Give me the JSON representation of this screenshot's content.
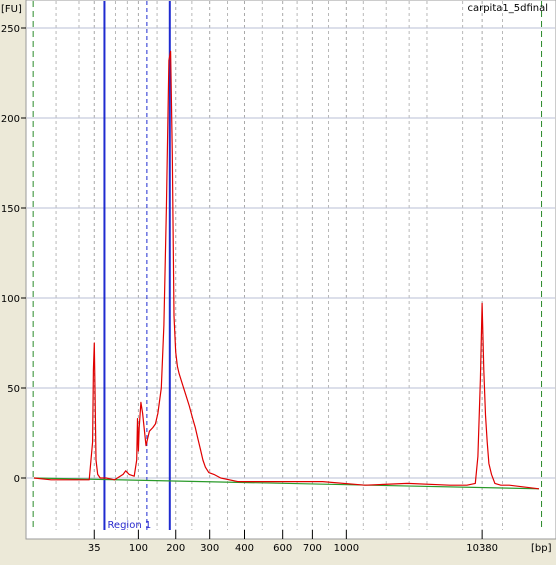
{
  "chart_data": {
    "type": "line",
    "title": "carpita1_5dfinal",
    "xlabel": "[bp]",
    "ylabel": "[FU]",
    "ylim": [
      -30,
      255
    ],
    "y_ticks": [
      0,
      50,
      100,
      150,
      200,
      250
    ],
    "x_ticks": [
      {
        "label": "35",
        "t": 43.1
      },
      {
        "label": "100",
        "t": 48.3
      },
      {
        "label": "200",
        "t": 52.7
      },
      {
        "label": "300",
        "t": 56.7
      },
      {
        "label": "400",
        "t": 60.8
      },
      {
        "label": "600",
        "t": 65.3
      },
      {
        "label": "700",
        "t": 68.8
      },
      {
        "label": "1000",
        "t": 72.8
      },
      {
        "label": "10380",
        "t": 88.8
      }
    ],
    "x_note": "x values are migration time (s); tick labels give fragment size in bp",
    "xlim": [
      36.0,
      95.5
    ],
    "region": {
      "label": "Region 1",
      "start_t": 44.3,
      "end_t": 52.0,
      "dashed_t": 49.3
    },
    "series": [
      {
        "color": "#e00000",
        "x": [
          36.0,
          38.0,
          40.0,
          41.5,
          42.5,
          42.9,
          43.0,
          43.1,
          43.2,
          43.3,
          43.5,
          43.8,
          44.5,
          45.5,
          46.5,
          46.8,
          47.2,
          47.8,
          48.1,
          48.2,
          48.3,
          48.4,
          48.6,
          48.8,
          49.0,
          49.2,
          49.4,
          49.6,
          50.0,
          50.3,
          50.6,
          51.0,
          51.3,
          51.6,
          51.9,
          52.1,
          52.3,
          52.5,
          52.7,
          52.9,
          53.1,
          53.5,
          53.9,
          54.3,
          54.7,
          55.0,
          55.3,
          55.6,
          55.9,
          56.2,
          56.6,
          57.2,
          58.0,
          60.0,
          65.0,
          70.0,
          75.0,
          80.0,
          85.0,
          87.0,
          88.0,
          88.3,
          88.6,
          88.8,
          89.0,
          89.2,
          89.4,
          89.6,
          89.9,
          90.3,
          91.0,
          92.0,
          95.5
        ],
        "y": [
          0,
          -1,
          -1,
          -1,
          -1,
          20,
          60,
          75,
          45,
          10,
          2,
          0,
          0,
          -1,
          2,
          4,
          2,
          1,
          10,
          33,
          15,
          28,
          42,
          36,
          27,
          18,
          22,
          26,
          28,
          30,
          36,
          50,
          85,
          150,
          232,
          237,
          180,
          90,
          70,
          62,
          58,
          52,
          46,
          40,
          33,
          28,
          22,
          16,
          10,
          6,
          3,
          2,
          0,
          -2,
          -2,
          -2,
          -4,
          -3,
          -4,
          -4,
          -3,
          12,
          55,
          97,
          60,
          35,
          20,
          8,
          2,
          -3,
          -4,
          -4,
          -6
        ]
      },
      {
        "color": "#2a9a2a",
        "x": [
          36.0,
          95.5
        ],
        "y": [
          0,
          -6
        ]
      }
    ]
  }
}
